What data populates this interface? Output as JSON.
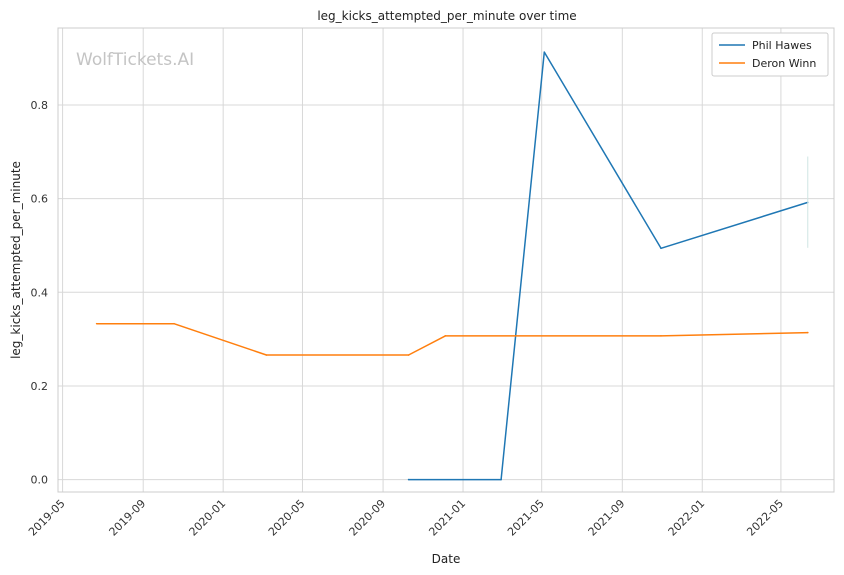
{
  "chart_data": {
    "type": "line",
    "title": "leg_kicks_attempted_per_minute over time",
    "xlabel": "Date",
    "ylabel": "leg_kicks_attempted_per_minute",
    "watermark": "WolfTickets.AI",
    "x_ticks": [
      "2019-05",
      "2019-09",
      "2020-01",
      "2020-05",
      "2020-09",
      "2021-01",
      "2021-05",
      "2021-09",
      "2022-01",
      "2022-05"
    ],
    "xlim": [
      "2019-04-24",
      "2022-07-21"
    ],
    "y_ticks": [
      "0.0",
      "0.2",
      "0.4",
      "0.6",
      "0.8"
    ],
    "ylim": [
      -0.0265,
      0.9645
    ],
    "grid": true,
    "legend_position": "upper right",
    "series": [
      {
        "name": "Phil Hawes",
        "color": "#1f77b4",
        "points": [
          {
            "x": "2020-10-10",
            "y": 0.0
          },
          {
            "x": "2021-02-28",
            "y": 0.0
          },
          {
            "x": "2021-05-05",
            "y": 0.913
          },
          {
            "x": "2021-10-30",
            "y": 0.494
          },
          {
            "x": "2022-06-11",
            "y": 0.592
          }
        ],
        "error_bar": {
          "x": "2022-06-11",
          "low": 0.495,
          "high": 0.69,
          "color": "#cfe5e3"
        }
      },
      {
        "name": "Deron Winn",
        "color": "#ff7f0e",
        "points": [
          {
            "x": "2019-06-22",
            "y": 0.333
          },
          {
            "x": "2019-10-18",
            "y": 0.333
          },
          {
            "x": "2020-03-07",
            "y": 0.266
          },
          {
            "x": "2020-10-10",
            "y": 0.266
          },
          {
            "x": "2020-12-05",
            "y": 0.307
          },
          {
            "x": "2021-10-30",
            "y": 0.307
          },
          {
            "x": "2022-06-11",
            "y": 0.314
          }
        ]
      }
    ]
  }
}
